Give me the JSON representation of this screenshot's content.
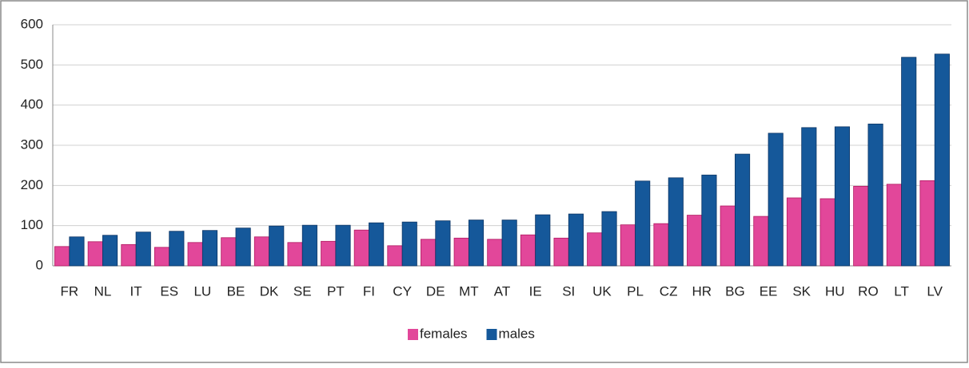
{
  "chart_data": {
    "type": "bar",
    "categories": [
      "FR",
      "NL",
      "IT",
      "ES",
      "LU",
      "BE",
      "DK",
      "SE",
      "PT",
      "FI",
      "CY",
      "DE",
      "MT",
      "AT",
      "IE",
      "SI",
      "UK",
      "PL",
      "CZ",
      "HR",
      "BG",
      "EE",
      "SK",
      "HU",
      "RO",
      "LT",
      "LV"
    ],
    "series": [
      {
        "name": "females",
        "color": "#e2479a",
        "values": [
          48,
          60,
          53,
          46,
          58,
          70,
          72,
          58,
          61,
          89,
          50,
          66,
          69,
          66,
          77,
          69,
          82,
          102,
          105,
          126,
          149,
          123,
          169,
          167,
          198,
          203,
          212
        ]
      },
      {
        "name": "males",
        "color": "#15589a",
        "values": [
          72,
          76,
          84,
          86,
          88,
          94,
          99,
          101,
          101,
          107,
          109,
          112,
          114,
          114,
          127,
          129,
          135,
          211,
          219,
          226,
          278,
          330,
          344,
          346,
          353,
          519,
          527
        ]
      }
    ],
    "ylim": [
      0,
      600
    ],
    "yticks": [
      0,
      100,
      200,
      300,
      400,
      500,
      600
    ],
    "grid": true,
    "legend": "bottom"
  }
}
